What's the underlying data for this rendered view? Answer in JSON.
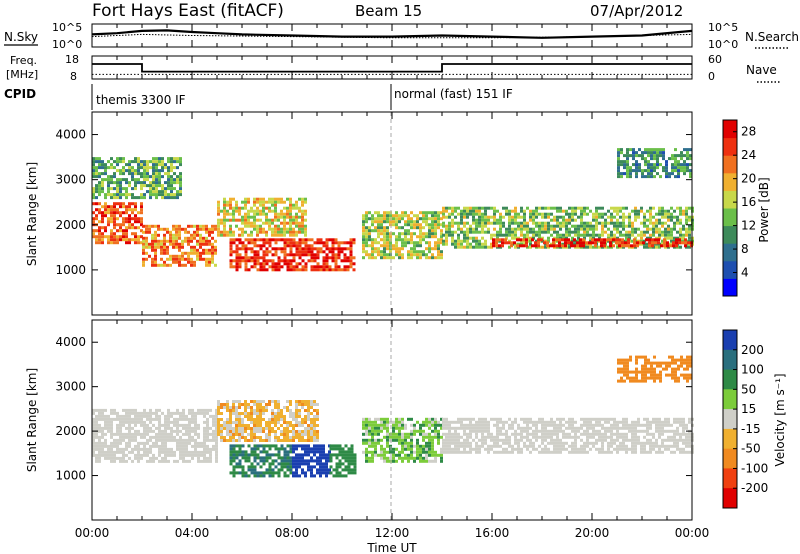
{
  "header": {
    "station": "Fort Hays East (fitACF)",
    "beam": "Beam 15",
    "date": "07/Apr/2012"
  },
  "time_axis": {
    "label": "Time UT",
    "ticks": [
      "00:00",
      "04:00",
      "08:00",
      "12:00",
      "16:00",
      "20:00",
      "00:00"
    ]
  },
  "nsky_panel": {
    "label": "N.Sky",
    "left_ticks": [
      "10^5",
      "10^0"
    ],
    "right_ticks": [
      "10^5",
      "10^0"
    ],
    "right_label": "N.Search",
    "right_legend_style": "dotted"
  },
  "freq_panel": {
    "label_line1": "Freq.",
    "label_line2": "[MHz]",
    "left_ticks": [
      "18",
      "8"
    ],
    "right_ticks": [
      "60",
      "0"
    ],
    "right_label": "Nave",
    "right_legend_style": "dotted"
  },
  "cpid_panel": {
    "label": "CPID",
    "segments": [
      {
        "label": "themis 3300 IF",
        "start_hr": 0,
        "end_hr": 12
      },
      {
        "label": "normal (fast) 151 IF",
        "start_hr": 12,
        "end_hr": 24
      }
    ]
  },
  "power_panel": {
    "ylabel": "Slant Range [km]",
    "yticks": [
      "1000",
      "2000",
      "3000",
      "4000"
    ],
    "colorbar_label": "Power [dB]",
    "colorbar_ticks": [
      "4",
      "8",
      "12",
      "16",
      "20",
      "24",
      "28"
    ]
  },
  "velocity_panel": {
    "ylabel": "Slant Range [km]",
    "yticks": [
      "1000",
      "2000",
      "3000",
      "4000"
    ],
    "colorbar_label": "Velocity [m s⁻¹]",
    "colorbar_ticks": [
      "200",
      "100",
      "50",
      "15",
      "-15",
      "-50",
      "-100",
      "-200"
    ]
  },
  "chart_data": [
    {
      "type": "line",
      "title": "",
      "xlabel": "Time UT",
      "xlim": [
        0,
        24
      ],
      "series": [
        {
          "name": "N.Sky",
          "x": [
            0,
            1,
            2,
            3,
            4,
            5,
            6,
            8,
            10,
            12,
            14,
            16,
            18,
            20,
            22,
            23.5,
            24
          ],
          "values": [
            0.55,
            0.6,
            0.7,
            0.72,
            0.65,
            0.6,
            0.55,
            0.5,
            0.45,
            0.45,
            0.5,
            0.45,
            0.4,
            0.45,
            0.5,
            0.65,
            0.7
          ]
        },
        {
          "name": "N.Search",
          "x": [
            0,
            2,
            4,
            8,
            12,
            16,
            20,
            24
          ],
          "values": [
            0.45,
            0.55,
            0.5,
            0.45,
            0.4,
            0.4,
            0.45,
            0.55
          ]
        }
      ]
    },
    {
      "type": "line",
      "title": "",
      "xlabel": "Time UT",
      "xlim": [
        0,
        24
      ],
      "ylim": [
        8,
        18
      ],
      "series": [
        {
          "name": "Freq.",
          "x": [
            0,
            2,
            2,
            14,
            14,
            24
          ],
          "values": [
            14.5,
            14.5,
            11.2,
            11.2,
            14.5,
            14.5
          ]
        },
        {
          "name": "Nave",
          "x": [
            0,
            24
          ],
          "values": [
            10,
            10
          ]
        }
      ]
    },
    {
      "type": "heatmap",
      "title": "",
      "xlabel": "Time UT",
      "ylabel": "Slant Range [km]",
      "xlim": [
        0,
        24
      ],
      "ylim": [
        0,
        4500
      ],
      "colorbar": {
        "label": "Power [dB]",
        "min": 0,
        "max": 30,
        "ticks": [
          4,
          8,
          12,
          16,
          20,
          24,
          28
        ]
      },
      "regions": [
        {
          "t0": 0,
          "t1": 2.0,
          "r0": 1600,
          "r1": 2500,
          "value": 24
        },
        {
          "t0": 2.0,
          "t1": 5.0,
          "r0": 1100,
          "r1": 2000,
          "value": 22
        },
        {
          "t0": 5.0,
          "t1": 8.5,
          "r0": 1800,
          "r1": 2600,
          "value": 18
        },
        {
          "t0": 5.5,
          "t1": 10.5,
          "r0": 1000,
          "r1": 1700,
          "value": 26
        },
        {
          "t0": 10.8,
          "t1": 14.0,
          "r0": 1300,
          "r1": 2300,
          "value": 16
        },
        {
          "t0": 14.0,
          "t1": 24.0,
          "r0": 1500,
          "r1": 2400,
          "value": 14
        },
        {
          "t0": 16.0,
          "t1": 24.0,
          "r0": 1550,
          "r1": 1700,
          "value": 26
        },
        {
          "t0": 21.0,
          "t1": 24.0,
          "r0": 3100,
          "r1": 3700,
          "value": 10
        },
        {
          "t0": 0,
          "t1": 3.5,
          "r0": 2600,
          "r1": 3500,
          "value": 12
        }
      ]
    },
    {
      "type": "heatmap",
      "title": "",
      "xlabel": "Time UT",
      "ylabel": "Slant Range [km]",
      "xlim": [
        0,
        24
      ],
      "ylim": [
        0,
        4500
      ],
      "colorbar": {
        "label": "Velocity [m s⁻¹]",
        "min": -200,
        "max": 200,
        "ticks": [
          200,
          100,
          50,
          15,
          -15,
          -50,
          -100,
          -200
        ]
      },
      "regions": [
        {
          "t0": 0,
          "t1": 5.0,
          "r0": 1300,
          "r1": 2500,
          "value": 0
        },
        {
          "t0": 5.0,
          "t1": 9.0,
          "r0": 1800,
          "r1": 2700,
          "value": -20
        },
        {
          "t0": 5.5,
          "t1": 8.0,
          "r0": 1000,
          "r1": 1700,
          "value": 70
        },
        {
          "t0": 8.0,
          "t1": 9.5,
          "r0": 1000,
          "r1": 1700,
          "value": 180
        },
        {
          "t0": 9.5,
          "t1": 10.5,
          "r0": 1000,
          "r1": 1700,
          "value": 60
        },
        {
          "t0": 10.8,
          "t1": 14.0,
          "r0": 1300,
          "r1": 2300,
          "value": 25
        },
        {
          "t0": 14.0,
          "t1": 24.0,
          "r0": 1500,
          "r1": 2300,
          "value": 0
        },
        {
          "t0": 21.0,
          "t1": 24.0,
          "r0": 3100,
          "r1": 3700,
          "value": -60
        }
      ]
    }
  ]
}
